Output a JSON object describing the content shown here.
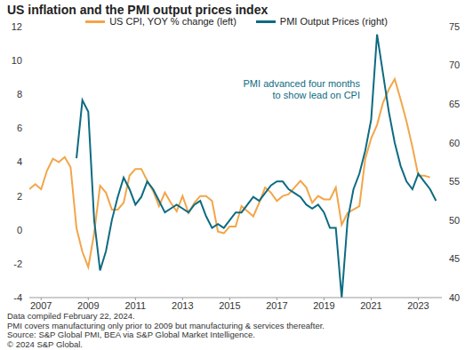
{
  "chart_data": {
    "type": "line",
    "title": "US inflation and the PMI output prices index",
    "annotation": [
      "PMI advanced four months",
      "to show lead on CPI"
    ],
    "notes": [
      "Data compiled February 22, 2024.",
      "PMI covers manufacturing only prior to 2009 but manufacturing & services thereafter.",
      "Source: S&P Global PMI, BEA via S&P Global Market Intelligence.",
      "© 2024 S&P Global."
    ],
    "legend": "top",
    "grid": false,
    "x": [
      2006.5,
      2006.75,
      2007,
      2007.25,
      2007.5,
      2007.75,
      2008,
      2008.25,
      2008.5,
      2008.75,
      2009,
      2009.25,
      2009.5,
      2009.75,
      2010,
      2010.25,
      2010.5,
      2010.75,
      2011,
      2011.25,
      2011.5,
      2011.75,
      2012,
      2012.25,
      2012.5,
      2012.75,
      2013,
      2013.25,
      2013.5,
      2013.75,
      2014,
      2014.25,
      2014.5,
      2014.75,
      2015,
      2015.25,
      2015.5,
      2015.75,
      2016,
      2016.25,
      2016.5,
      2016.75,
      2017,
      2017.25,
      2017.5,
      2017.75,
      2018,
      2018.25,
      2018.5,
      2018.75,
      2019,
      2019.25,
      2019.5,
      2019.75,
      2020,
      2020.25,
      2020.5,
      2020.75,
      2021,
      2021.25,
      2021.5,
      2021.75,
      2022,
      2022.25,
      2022.5,
      2022.75,
      2023,
      2023.25,
      2023.5,
      2023.75
    ],
    "xlim": [
      2006.5,
      2024
    ],
    "xticks": [
      2007,
      2009,
      2011,
      2013,
      2015,
      2017,
      2019,
      2021,
      2023
    ],
    "ylim": [
      -4,
      12
    ],
    "yticks": [
      -4,
      -2,
      0,
      2,
      4,
      6,
      8,
      10,
      12
    ],
    "y2lim": [
      40,
      75
    ],
    "y2ticks": [
      40,
      45,
      50,
      55,
      60,
      65,
      70,
      75
    ],
    "series": [
      {
        "name": "US CPI, YOY % change (left)",
        "color": "#f2a649",
        "values": [
          2.4,
          2.7,
          2.4,
          3.5,
          4.2,
          4.0,
          4.3,
          3.7,
          0.1,
          -1.3,
          -2.2,
          -0.2,
          2.6,
          2.2,
          1.2,
          1.2,
          1.6,
          3.2,
          3.6,
          3.6,
          2.9,
          2.3,
          1.4,
          2.2,
          1.6,
          1.1,
          2.0,
          1.0,
          1.6,
          2.0,
          2.0,
          1.7,
          -0.1,
          -0.2,
          0.2,
          0.2,
          1.4,
          1.1,
          0.8,
          1.6,
          2.5,
          2.2,
          1.7,
          2.0,
          2.1,
          2.5,
          2.9,
          2.5,
          1.6,
          2.0,
          1.8,
          1.8,
          2.5,
          0.3,
          1.0,
          1.2,
          1.4,
          4.2,
          5.4,
          6.2,
          7.5,
          8.3,
          8.9,
          7.7,
          6.4,
          4.9,
          3.2,
          3.2,
          3.1,
          null
        ]
      },
      {
        "name": "PMI Output Prices (right)",
        "color": "#0d6b82",
        "axis": "y2",
        "values": [
          null,
          null,
          null,
          null,
          null,
          null,
          null,
          null,
          58,
          65.5,
          64,
          50,
          43.5,
          46,
          50,
          53,
          55.5,
          54,
          52,
          53,
          55,
          54,
          52.5,
          51,
          51.5,
          52,
          51.5,
          51,
          52,
          52.5,
          50.5,
          49,
          49.5,
          49,
          50,
          51,
          51,
          52,
          53,
          52.5,
          53.5,
          54.5,
          55,
          55,
          54,
          53.5,
          53,
          52,
          51.5,
          52,
          51,
          49,
          49,
          40,
          50,
          54,
          56,
          59,
          63,
          74,
          69,
          64,
          60,
          57,
          55,
          54,
          56,
          55,
          54,
          52.5
        ]
      }
    ]
  }
}
